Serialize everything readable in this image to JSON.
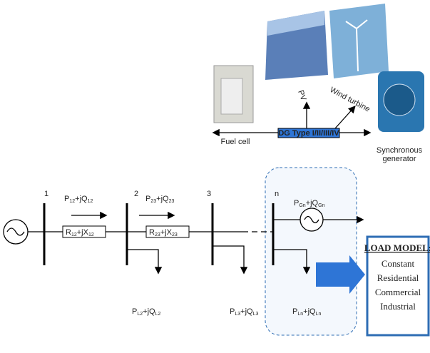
{
  "devices": {
    "fuel_cell": "Fuel cell",
    "pv": "PV",
    "wind": "Wind turbine",
    "generator": [
      "Synchronous",
      "generator"
    ]
  },
  "dg_type": "DG Type I/II/III/IV",
  "buses": [
    "1",
    "2",
    "3",
    "n"
  ],
  "flows": [
    {
      "p": "P",
      "p_sub": "12",
      "q": "+jQ",
      "q_sub": "12"
    },
    {
      "p": "P",
      "p_sub": "23",
      "q": "+jQ",
      "q_sub": "23"
    }
  ],
  "impedances": [
    {
      "r": "R",
      "r_sub": "12",
      "x": "+jX",
      "x_sub": "12"
    },
    {
      "r": "R",
      "r_sub": "23",
      "x": "+jX",
      "x_sub": "23"
    }
  ],
  "dg_power": {
    "p": "P",
    "p_sub": "Gn",
    "q": "+jQ",
    "q_sub": "Gn"
  },
  "loads": [
    {
      "p": "P",
      "p_sub": "L2",
      "q": "+jQ",
      "q_sub": "L2"
    },
    {
      "p": "P",
      "p_sub": "L3",
      "q": "+jQ",
      "q_sub": "L3"
    },
    {
      "p": "P",
      "p_sub": "Ln",
      "q": "+jQ",
      "q_sub": "Ln"
    }
  ],
  "load_model": {
    "title": "LOAD MODEL:",
    "items": [
      "Constant",
      "Residential",
      "Commercial",
      "Industrial"
    ]
  }
}
